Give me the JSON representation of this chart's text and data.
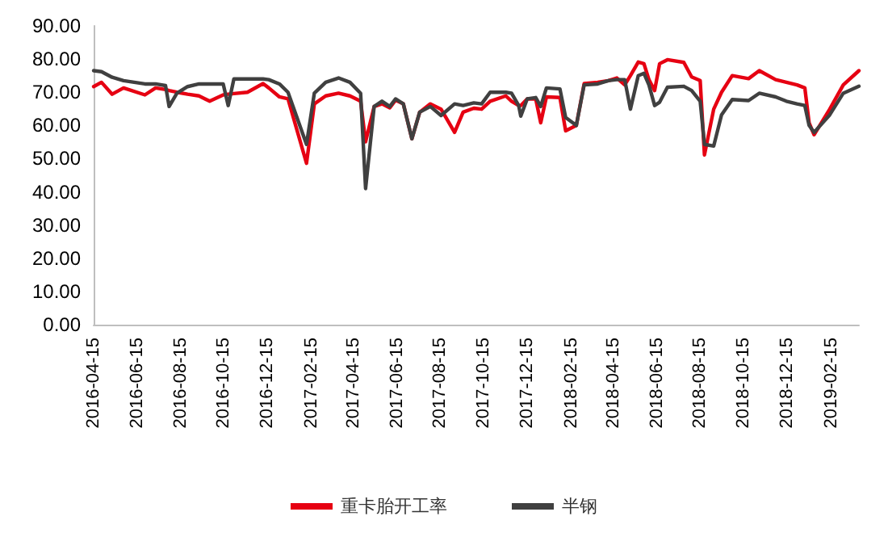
{
  "chart_data": {
    "type": "line",
    "x": [
      "2016-04-15",
      "2016-04-26",
      "2016-05-11",
      "2016-05-27",
      "2016-06-26",
      "2016-07-11",
      "2016-07-25",
      "2016-07-30",
      "2016-08-10",
      "2016-08-25",
      "2016-09-10",
      "2016-09-25",
      "2016-10-14",
      "2016-10-21",
      "2016-10-29",
      "2016-11-17",
      "2016-12-09",
      "2016-12-17",
      "2017-01-01",
      "2017-01-13",
      "2017-02-08",
      "2017-02-19",
      "2017-03-07",
      "2017-03-25",
      "2017-04-10",
      "2017-04-25",
      "2017-05-02",
      "2017-05-14",
      "2017-05-25",
      "2017-06-05",
      "2017-06-13",
      "2017-06-24",
      "2017-07-06",
      "2017-07-17",
      "2017-08-01",
      "2017-08-16",
      "2017-09-04",
      "2017-09-16",
      "2017-10-01",
      "2017-10-12",
      "2017-10-24",
      "2017-11-15",
      "2017-11-23",
      "2017-12-03",
      "2017-12-06",
      "2017-12-15",
      "2017-12-27",
      "2018-01-03",
      "2018-01-11",
      "2018-01-30",
      "2018-02-07",
      "2018-02-22",
      "2018-03-05",
      "2018-03-24",
      "2018-04-08",
      "2018-04-20",
      "2018-05-01",
      "2018-05-09",
      "2018-05-20",
      "2018-05-28",
      "2018-06-04",
      "2018-06-12",
      "2018-06-19",
      "2018-06-30",
      "2018-07-23",
      "2018-08-03",
      "2018-08-15",
      "2018-08-21",
      "2018-09-03",
      "2018-09-14",
      "2018-09-29",
      "2018-10-22",
      "2018-11-06",
      "2018-11-29",
      "2018-12-14",
      "2018-12-29",
      "2019-01-09",
      "2019-01-15",
      "2019-01-22",
      "2019-02-13",
      "2019-03-04",
      "2019-03-26"
    ],
    "series": [
      {
        "name": "重卡胎开工率",
        "color": "#e60012",
        "values": [
          71.7,
          73,
          69.4,
          71.3,
          69.2,
          71.3,
          70.8,
          70.5,
          70,
          69.4,
          68.9,
          67.3,
          69.2,
          69.4,
          69.6,
          70,
          72.6,
          71.3,
          68.6,
          68,
          48.6,
          66.5,
          68.9,
          69.7,
          68.9,
          67.3,
          55.1,
          65.7,
          66.5,
          65.3,
          67.6,
          66.5,
          56,
          64,
          66.5,
          64.9,
          57.9,
          64,
          65.2,
          64.9,
          67.3,
          68.9,
          67.3,
          66,
          66,
          68,
          68,
          60.8,
          68.6,
          68.4,
          58.4,
          60,
          72.6,
          73,
          73.5,
          74.3,
          72.2,
          75,
          79.1,
          78.6,
          73.8,
          70.5,
          78.6,
          79.8,
          79,
          74.6,
          73.5,
          51.1,
          64.9,
          70,
          75,
          74.1,
          76.5,
          73.8,
          73,
          72.2,
          71.3,
          60.8,
          57.2,
          64.9,
          72.2,
          76.5
        ]
      },
      {
        "name": "半钢",
        "color": "#404040",
        "values": [
          76.5,
          76.2,
          74.5,
          73.5,
          72.5,
          72.5,
          72,
          65.7,
          69.7,
          71.7,
          72.5,
          72.5,
          72.5,
          66,
          74,
          74,
          74,
          73.8,
          72.5,
          70,
          54.3,
          69.7,
          73,
          74.3,
          73,
          69.7,
          41,
          65.7,
          67.3,
          65.7,
          68,
          66.5,
          56,
          64,
          65.7,
          63,
          66.5,
          66,
          66.8,
          66.5,
          70,
          70,
          69.7,
          66,
          62.8,
          68,
          68.4,
          65.7,
          71.3,
          71,
          62.4,
          60,
          72.2,
          72.5,
          73.5,
          73.8,
          73.8,
          64.9,
          75,
          75.7,
          72.2,
          66,
          67,
          71.5,
          71.8,
          70.5,
          67.3,
          54.3,
          53.8,
          63.2,
          67.8,
          67.5,
          69.7,
          68.6,
          67.3,
          66.5,
          66,
          60,
          57.9,
          63.2,
          69.7,
          71.8
        ]
      }
    ],
    "xlim": [
      "2016-04-15",
      "2019-03-26"
    ],
    "xticks": [
      "2016-04-15",
      "2016-06-15",
      "2016-08-15",
      "2016-10-15",
      "2016-12-15",
      "2017-02-15",
      "2017-04-15",
      "2017-06-15",
      "2017-08-15",
      "2017-10-15",
      "2017-12-15",
      "2018-02-15",
      "2018-04-15",
      "2018-06-15",
      "2018-08-15",
      "2018-10-15",
      "2018-12-15",
      "2019-02-15"
    ],
    "ylim": [
      0,
      90
    ],
    "yticks": [
      {
        "value": 0,
        "label": "0.00"
      },
      {
        "value": 10,
        "label": "10.00"
      },
      {
        "value": 20,
        "label": "20.00"
      },
      {
        "value": 30,
        "label": "30.00"
      },
      {
        "value": 40,
        "label": "40.00"
      },
      {
        "value": 50,
        "label": "50.00"
      },
      {
        "value": 60,
        "label": "60.00"
      },
      {
        "value": 70,
        "label": "70.00"
      },
      {
        "value": 80,
        "label": "80.00"
      },
      {
        "value": 90,
        "label": "90.00"
      }
    ],
    "grid": false,
    "legend": "bottom",
    "marker": "none",
    "line_style": "solid"
  }
}
